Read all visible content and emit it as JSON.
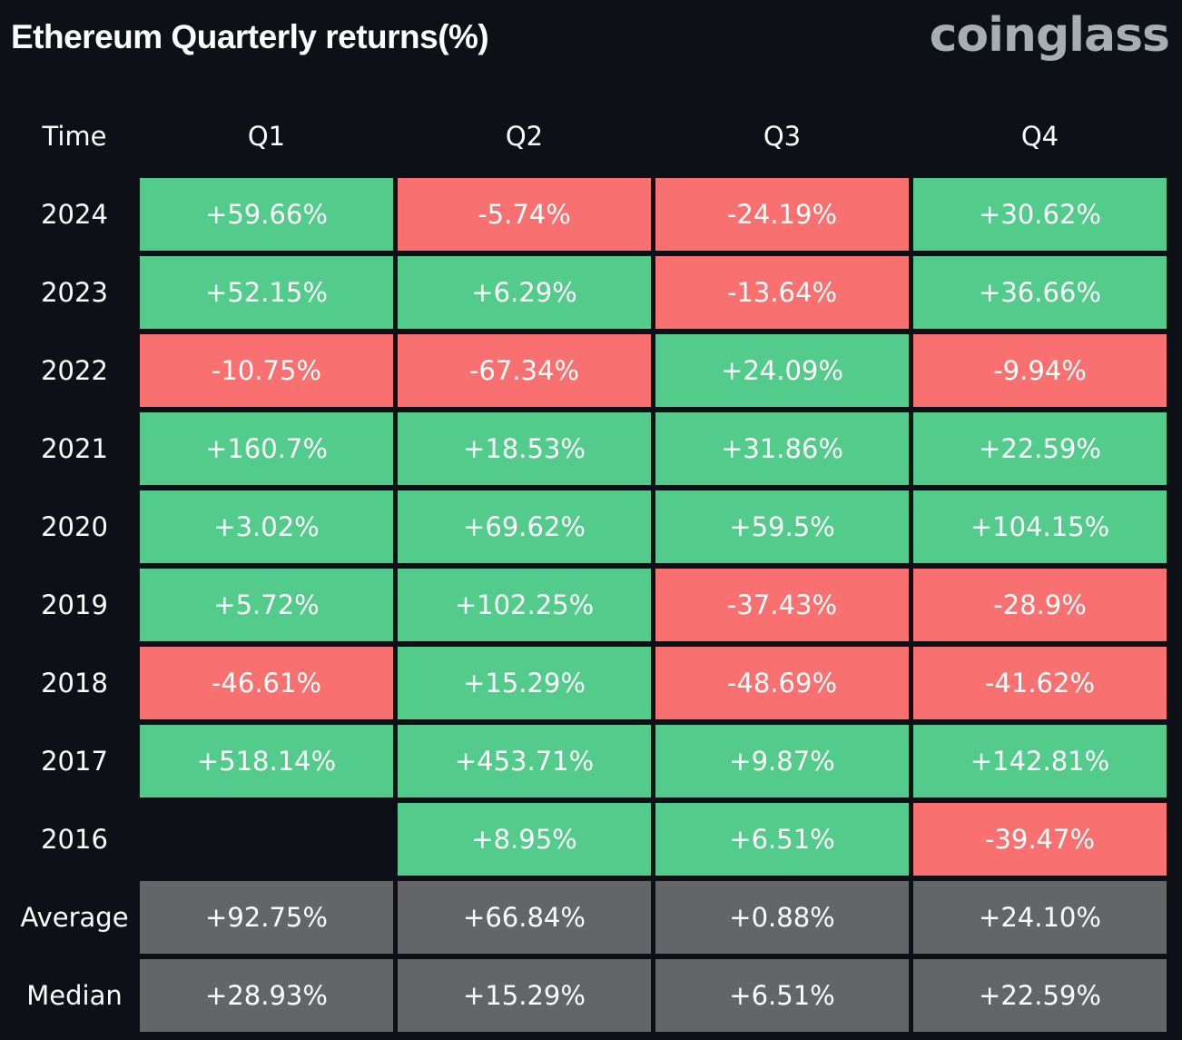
{
  "header": {
    "title": "Ethereum Quarterly returns(%)",
    "brand": "coinglass"
  },
  "colors": {
    "background": "#0d1017",
    "positive": "#52cb8b",
    "negative": "#f87070",
    "stat": "#646567",
    "brand": "#a8acb3"
  },
  "chart_data": {
    "type": "table",
    "title": "Ethereum Quarterly returns(%)",
    "columns": [
      "Time",
      "Q1",
      "Q2",
      "Q3",
      "Q4"
    ],
    "rows": [
      {
        "label": "2024",
        "values": [
          "+59.66%",
          "-5.74%",
          "-24.19%",
          "+30.62%"
        ]
      },
      {
        "label": "2023",
        "values": [
          "+52.15%",
          "+6.29%",
          "-13.64%",
          "+36.66%"
        ]
      },
      {
        "label": "2022",
        "values": [
          "-10.75%",
          "-67.34%",
          "+24.09%",
          "-9.94%"
        ]
      },
      {
        "label": "2021",
        "values": [
          "+160.7%",
          "+18.53%",
          "+31.86%",
          "+22.59%"
        ]
      },
      {
        "label": "2020",
        "values": [
          "+3.02%",
          "+69.62%",
          "+59.5%",
          "+104.15%"
        ]
      },
      {
        "label": "2019",
        "values": [
          "+5.72%",
          "+102.25%",
          "-37.43%",
          "-28.9%"
        ]
      },
      {
        "label": "2018",
        "values": [
          "-46.61%",
          "+15.29%",
          "-48.69%",
          "-41.62%"
        ]
      },
      {
        "label": "2017",
        "values": [
          "+518.14%",
          "+453.71%",
          "+9.87%",
          "+142.81%"
        ]
      },
      {
        "label": "2016",
        "values": [
          "",
          "+8.95%",
          "+6.51%",
          "-39.47%"
        ]
      }
    ],
    "summary": [
      {
        "label": "Average",
        "values": [
          "+92.75%",
          "+66.84%",
          "+0.88%",
          "+24.10%"
        ]
      },
      {
        "label": "Median",
        "values": [
          "+28.93%",
          "+15.29%",
          "+6.51%",
          "+22.59%"
        ]
      }
    ]
  }
}
